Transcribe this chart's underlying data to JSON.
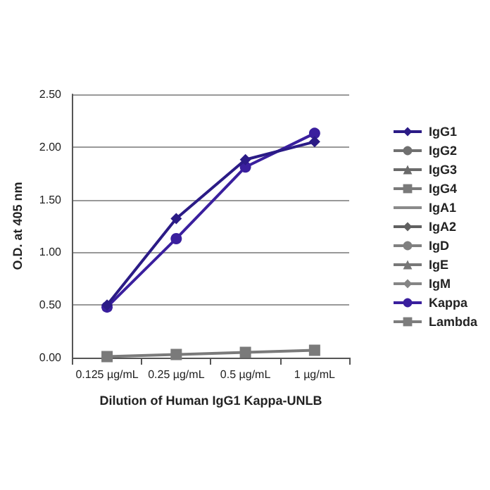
{
  "chart_data": {
    "type": "line",
    "xlabel": "Dilution of Human IgG1 Kappa-UNLB",
    "ylabel": "O.D. at 405 nm",
    "categories": [
      "0.125 µg/mL",
      "0.25 µg/mL",
      "0.5 µg/mL",
      "1 µg/mL"
    ],
    "series": [
      {
        "name": "IgG1",
        "color": "#2b1b86",
        "marker": "diamond",
        "values": [
          0.5,
          1.32,
          1.88,
          2.05
        ]
      },
      {
        "name": "IgG2",
        "color": "#707070",
        "marker": "circle",
        "values": [
          null,
          null,
          null,
          null
        ]
      },
      {
        "name": "IgG3",
        "color": "#6a6a6a",
        "marker": "triangle",
        "values": [
          null,
          null,
          null,
          null
        ]
      },
      {
        "name": "IgG4",
        "color": "#7a7a7a",
        "marker": "square",
        "values": [
          0.01,
          0.03,
          0.05,
          0.07
        ]
      },
      {
        "name": "IgA1",
        "color": "#8a8a8a",
        "marker": "cross",
        "values": [
          null,
          null,
          null,
          null
        ]
      },
      {
        "name": "IgA2",
        "color": "#606060",
        "marker": "diamond",
        "values": [
          null,
          null,
          null,
          null
        ]
      },
      {
        "name": "IgD",
        "color": "#808080",
        "marker": "circle",
        "values": [
          null,
          null,
          null,
          null
        ]
      },
      {
        "name": "IgE",
        "color": "#777777",
        "marker": "triangle",
        "values": [
          null,
          null,
          null,
          null
        ]
      },
      {
        "name": "IgM",
        "color": "#858585",
        "marker": "diamond",
        "values": [
          null,
          null,
          null,
          null
        ]
      },
      {
        "name": "Kappa",
        "color": "#3a1f9e",
        "marker": "circle",
        "values": [
          0.48,
          1.13,
          1.81,
          2.13
        ]
      },
      {
        "name": "Lambda",
        "color": "#7d7d7d",
        "marker": "square",
        "values": [
          null,
          null,
          null,
          null
        ]
      }
    ],
    "ylim": [
      0,
      2.5
    ],
    "yticks": [
      {
        "value": 0,
        "label": "0.00"
      },
      {
        "value": 0.5,
        "label": "0.50"
      },
      {
        "value": 1,
        "label": "1.00"
      },
      {
        "value": 1.5,
        "label": "1.50"
      },
      {
        "value": 2,
        "label": "2.00"
      },
      {
        "value": 2.5,
        "label": "2.50"
      }
    ],
    "grid": "y",
    "legend": "right",
    "line_style": "solid"
  }
}
